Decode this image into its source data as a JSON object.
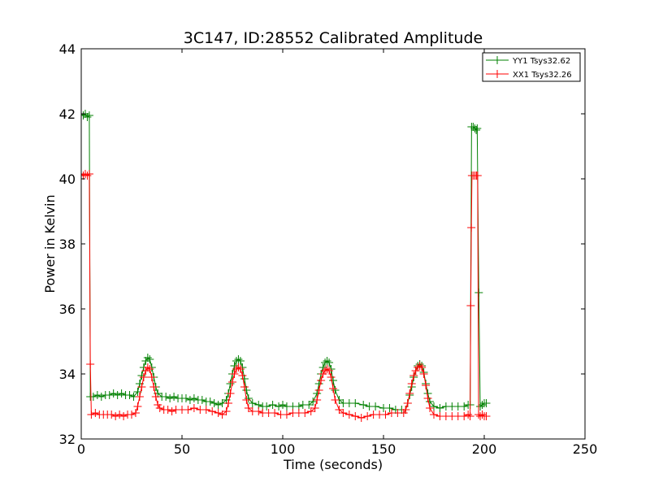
{
  "chart_data": {
    "type": "line",
    "title": "3C147, ID:28552 Calibrated Amplitude",
    "xlabel": "Time (seconds)",
    "ylabel": "Power in Kelvin",
    "xlim": [
      0,
      250
    ],
    "ylim": [
      32,
      44
    ],
    "xticks": [
      0,
      50,
      100,
      150,
      200,
      250
    ],
    "yticks": [
      32,
      34,
      36,
      38,
      40,
      42,
      44
    ],
    "x_tick_labels": [
      "0",
      "50",
      "100",
      "150",
      "200",
      "250"
    ],
    "y_tick_labels": [
      "32",
      "34",
      "36",
      "38",
      "40",
      "42",
      "44"
    ],
    "grid": false,
    "legend_position": "top-right",
    "marker": "plus",
    "series": [
      {
        "name": "YY1 Tsys32.62",
        "color": "#008000",
        "points": [
          [
            0,
            42.0
          ],
          [
            1,
            41.95
          ],
          [
            2,
            42.0
          ],
          [
            3,
            41.9
          ],
          [
            4,
            41.95
          ],
          [
            4.5,
            33.3
          ],
          [
            6,
            33.3
          ],
          [
            8,
            33.35
          ],
          [
            10,
            33.3
          ],
          [
            12,
            33.35
          ],
          [
            14,
            33.35
          ],
          [
            16,
            33.4
          ],
          [
            18,
            33.35
          ],
          [
            20,
            33.4
          ],
          [
            22,
            33.35
          ],
          [
            24,
            33.35
          ],
          [
            26,
            33.3
          ],
          [
            28,
            33.45
          ],
          [
            29,
            33.7
          ],
          [
            30,
            33.95
          ],
          [
            31,
            34.2
          ],
          [
            32,
            34.4
          ],
          [
            33,
            34.5
          ],
          [
            34,
            34.45
          ],
          [
            35,
            34.2
          ],
          [
            36,
            33.9
          ],
          [
            37,
            33.6
          ],
          [
            38,
            33.4
          ],
          [
            40,
            33.3
          ],
          [
            42,
            33.3
          ],
          [
            44,
            33.25
          ],
          [
            46,
            33.3
          ],
          [
            48,
            33.25
          ],
          [
            50,
            33.25
          ],
          [
            52,
            33.25
          ],
          [
            54,
            33.2
          ],
          [
            56,
            33.25
          ],
          [
            58,
            33.2
          ],
          [
            60,
            33.2
          ],
          [
            62,
            33.15
          ],
          [
            64,
            33.15
          ],
          [
            66,
            33.1
          ],
          [
            68,
            33.05
          ],
          [
            70,
            33.1
          ],
          [
            72,
            33.2
          ],
          [
            73,
            33.4
          ],
          [
            74,
            33.7
          ],
          [
            75,
            34.0
          ],
          [
            76,
            34.25
          ],
          [
            77,
            34.4
          ],
          [
            78,
            34.45
          ],
          [
            79,
            34.4
          ],
          [
            80,
            34.2
          ],
          [
            81,
            33.85
          ],
          [
            82,
            33.5
          ],
          [
            83,
            33.25
          ],
          [
            85,
            33.1
          ],
          [
            88,
            33.05
          ],
          [
            90,
            33.0
          ],
          [
            92,
            33.0
          ],
          [
            95,
            33.05
          ],
          [
            98,
            33.0
          ],
          [
            100,
            33.05
          ],
          [
            102,
            33.0
          ],
          [
            105,
            33.0
          ],
          [
            108,
            33.0
          ],
          [
            110,
            33.05
          ],
          [
            113,
            33.05
          ],
          [
            115,
            33.15
          ],
          [
            117,
            33.4
          ],
          [
            118,
            33.7
          ],
          [
            119,
            34.0
          ],
          [
            120,
            34.2
          ],
          [
            121,
            34.35
          ],
          [
            122,
            34.4
          ],
          [
            123,
            34.35
          ],
          [
            124,
            34.15
          ],
          [
            125,
            33.8
          ],
          [
            126,
            33.5
          ],
          [
            128,
            33.2
          ],
          [
            130,
            33.1
          ],
          [
            133,
            33.1
          ],
          [
            136,
            33.1
          ],
          [
            140,
            33.05
          ],
          [
            143,
            33.0
          ],
          [
            146,
            33.0
          ],
          [
            150,
            32.95
          ],
          [
            153,
            32.95
          ],
          [
            156,
            32.9
          ],
          [
            159,
            32.9
          ],
          [
            161,
            32.9
          ],
          [
            162,
            33.1
          ],
          [
            163,
            33.35
          ],
          [
            164,
            33.6
          ],
          [
            165,
            33.9
          ],
          [
            166,
            34.1
          ],
          [
            167,
            34.25
          ],
          [
            168,
            34.3
          ],
          [
            169,
            34.25
          ],
          [
            170,
            34.05
          ],
          [
            171,
            33.7
          ],
          [
            172,
            33.4
          ],
          [
            173,
            33.15
          ],
          [
            175,
            33.0
          ],
          [
            178,
            32.95
          ],
          [
            181,
            33.0
          ],
          [
            184,
            33.0
          ],
          [
            187,
            33.0
          ],
          [
            190,
            33.0
          ],
          [
            192,
            33.05
          ],
          [
            193,
            33.05
          ],
          [
            193.7,
            41.6
          ],
          [
            194.5,
            41.6
          ],
          [
            195.3,
            41.55
          ],
          [
            196,
            41.5
          ],
          [
            196.5,
            41.55
          ],
          [
            197.3,
            36.5
          ],
          [
            198.0,
            33.0
          ],
          [
            199,
            33.05
          ],
          [
            200,
            33.1
          ],
          [
            201,
            33.1
          ]
        ]
      },
      {
        "name": "XX1 Tsys32.26",
        "color": "#ff0000",
        "points": [
          [
            0,
            40.15
          ],
          [
            1,
            40.1
          ],
          [
            2,
            40.15
          ],
          [
            3,
            40.1
          ],
          [
            4,
            40.15
          ],
          [
            4.5,
            34.3
          ],
          [
            5,
            32.75
          ],
          [
            7,
            32.8
          ],
          [
            9,
            32.75
          ],
          [
            11,
            32.75
          ],
          [
            13,
            32.75
          ],
          [
            15,
            32.75
          ],
          [
            17,
            32.7
          ],
          [
            19,
            32.75
          ],
          [
            21,
            32.7
          ],
          [
            23,
            32.75
          ],
          [
            25,
            32.75
          ],
          [
            27,
            32.8
          ],
          [
            28,
            33.0
          ],
          [
            29,
            33.3
          ],
          [
            30,
            33.6
          ],
          [
            31,
            33.9
          ],
          [
            32,
            34.1
          ],
          [
            33,
            34.2
          ],
          [
            34,
            34.15
          ],
          [
            35,
            33.9
          ],
          [
            36,
            33.6
          ],
          [
            37,
            33.3
          ],
          [
            38,
            33.05
          ],
          [
            39,
            32.95
          ],
          [
            41,
            32.9
          ],
          [
            43,
            32.9
          ],
          [
            45,
            32.85
          ],
          [
            47,
            32.9
          ],
          [
            50,
            32.9
          ],
          [
            53,
            32.9
          ],
          [
            56,
            32.95
          ],
          [
            59,
            32.9
          ],
          [
            62,
            32.9
          ],
          [
            65,
            32.85
          ],
          [
            68,
            32.8
          ],
          [
            70,
            32.75
          ],
          [
            72,
            32.85
          ],
          [
            73,
            33.1
          ],
          [
            74,
            33.4
          ],
          [
            75,
            33.75
          ],
          [
            76,
            34.0
          ],
          [
            77,
            34.15
          ],
          [
            78,
            34.2
          ],
          [
            79,
            34.15
          ],
          [
            80,
            33.95
          ],
          [
            81,
            33.6
          ],
          [
            82,
            33.2
          ],
          [
            83,
            32.95
          ],
          [
            85,
            32.85
          ],
          [
            88,
            32.85
          ],
          [
            90,
            32.8
          ],
          [
            93,
            32.8
          ],
          [
            96,
            32.8
          ],
          [
            99,
            32.75
          ],
          [
            102,
            32.75
          ],
          [
            105,
            32.8
          ],
          [
            108,
            32.8
          ],
          [
            111,
            32.8
          ],
          [
            114,
            32.85
          ],
          [
            116,
            32.95
          ],
          [
            117,
            33.2
          ],
          [
            118,
            33.5
          ],
          [
            119,
            33.8
          ],
          [
            120,
            34.0
          ],
          [
            121,
            34.1
          ],
          [
            122,
            34.15
          ],
          [
            123,
            34.1
          ],
          [
            124,
            33.9
          ],
          [
            125,
            33.55
          ],
          [
            126,
            33.2
          ],
          [
            128,
            32.9
          ],
          [
            130,
            32.8
          ],
          [
            133,
            32.75
          ],
          [
            136,
            32.7
          ],
          [
            139,
            32.65
          ],
          [
            142,
            32.7
          ],
          [
            145,
            32.75
          ],
          [
            148,
            32.75
          ],
          [
            151,
            32.75
          ],
          [
            154,
            32.8
          ],
          [
            157,
            32.8
          ],
          [
            160,
            32.8
          ],
          [
            161,
            32.9
          ],
          [
            162,
            33.1
          ],
          [
            163,
            33.4
          ],
          [
            164,
            33.7
          ],
          [
            165,
            33.95
          ],
          [
            166,
            34.1
          ],
          [
            167,
            34.2
          ],
          [
            168,
            34.25
          ],
          [
            169,
            34.2
          ],
          [
            170,
            34.0
          ],
          [
            171,
            33.65
          ],
          [
            172,
            33.25
          ],
          [
            173,
            32.95
          ],
          [
            175,
            32.75
          ],
          [
            178,
            32.7
          ],
          [
            181,
            32.7
          ],
          [
            184,
            32.7
          ],
          [
            187,
            32.7
          ],
          [
            190,
            32.7
          ],
          [
            192,
            32.75
          ],
          [
            193,
            32.7
          ],
          [
            193.3,
            36.1
          ],
          [
            193.6,
            38.5
          ],
          [
            193.9,
            40.1
          ],
          [
            194.7,
            40.1
          ],
          [
            195.5,
            40.1
          ],
          [
            196.2,
            40.1
          ],
          [
            196.7,
            40.1
          ],
          [
            197.2,
            32.75
          ],
          [
            198,
            32.7
          ],
          [
            199,
            32.75
          ],
          [
            200,
            32.7
          ],
          [
            201,
            32.7
          ]
        ]
      }
    ]
  }
}
